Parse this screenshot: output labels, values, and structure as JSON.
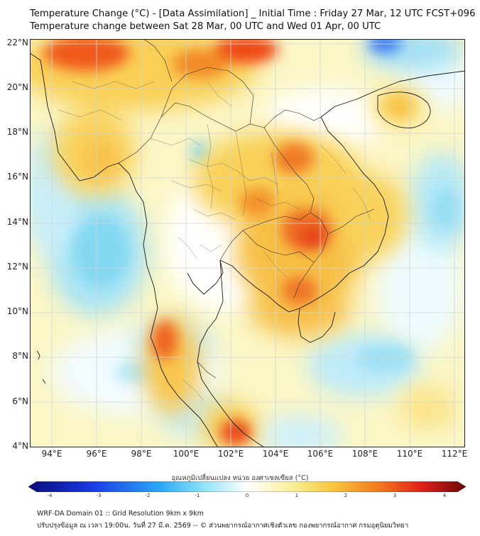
{
  "header": {
    "title_line1": "Temperature Change (°C) - [Data Assimilation] _ Initial Time : Friday 27 Mar, 12 UTC FCST+096",
    "title_line2": "Temperature change between Sat 28 Mar, 00 UTC and Wed 01 Apr, 00 UTC"
  },
  "map": {
    "region": "Mainland Southeast Asia",
    "lat_range_deg": [
      4,
      22.3
    ],
    "lon_range_deg": [
      93,
      112.5
    ],
    "lat_labels": [
      "22°N",
      "20°N",
      "18°N",
      "16°N",
      "14°N",
      "12°N",
      "10°N",
      "8°N",
      "6°N",
      "4°N"
    ],
    "lon_labels": [
      "94°E",
      "96°E",
      "98°E",
      "100°E",
      "102°E",
      "104°E",
      "106°E",
      "108°E",
      "110°E",
      "112°E"
    ],
    "warm_spots": [
      {
        "lon": 95.0,
        "lat": 21.7,
        "change_c": 2.9
      },
      {
        "lon": 102.0,
        "lat": 21.7,
        "change_c": 2.8
      },
      {
        "lon": 104.3,
        "lat": 16.6,
        "change_c": 2.6
      },
      {
        "lon": 105.2,
        "lat": 13.5,
        "change_c": 2.8
      },
      {
        "lon": 104.8,
        "lat": 10.7,
        "change_c": 2.6
      },
      {
        "lon": 99.0,
        "lat": 8.8,
        "change_c": 2.6
      },
      {
        "lon": 102.0,
        "lat": 4.6,
        "change_c": 2.7
      }
    ],
    "cool_spots": [
      {
        "lon": 108.9,
        "lat": 22.2,
        "change_c": -1.9
      },
      {
        "lon": 95.5,
        "lat": 12.8,
        "change_c": -0.9
      },
      {
        "lon": 100.8,
        "lat": 16.8,
        "change_c": -0.5
      },
      {
        "lon": 107.0,
        "lat": 8.4,
        "change_c": -0.7
      }
    ]
  },
  "colorbar": {
    "title": "อุณหภูมิเปลี่ยนแปลง หน่วย องศาเซลเซียส (°C)",
    "min": -4,
    "max": 4,
    "ticks": [
      "-4",
      "-3",
      "-2",
      "-1",
      "0",
      "1",
      "2",
      "3",
      "4"
    ],
    "colors": {
      "dark_blue": "#0b0b7a",
      "blue": "#1e64ff",
      "cyan": "#38d0f0",
      "white": "#ffffff",
      "yellow": "#f8ea60",
      "orange": "#f58a1e",
      "red": "#e8251c",
      "dark_red": "#6a0808"
    }
  },
  "footer": {
    "line1": "WRF-DA Domain 01 :: Grid Resolution 9km x 9km",
    "line2": "ปรับปรุงข้อมูล ณ เวลา 19:00น. วันที่ 27 มี.ค. 2569 -- © ส่วนพยากรณ์อากาศเชิงตัวเลข กองพยากรณ์อากาศ กรมอุตุนิยมวิทยา"
  }
}
